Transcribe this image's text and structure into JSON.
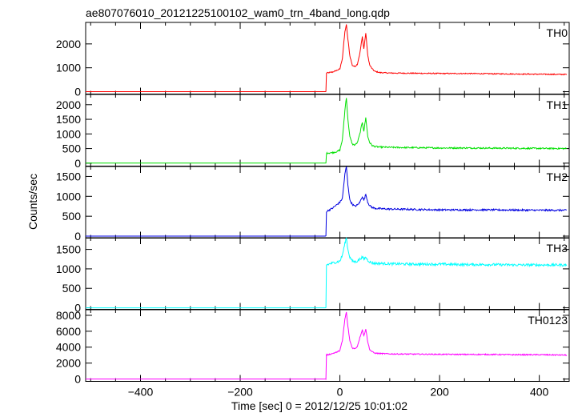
{
  "chart_data": {
    "type": "line",
    "title": "ae807076010_20121225100102_wam0_trn_4band_long.qdp",
    "xlabel": "Time [sec] 0 = 2012/12/25 10:01:02",
    "ylabel": "Counts/sec",
    "xlim": [
      -510,
      460
    ],
    "xticks": [
      -400,
      -200,
      0,
      200,
      400
    ],
    "grid": false,
    "panels": [
      {
        "name": "TH0",
        "color": "#ff0000",
        "ylim": [
          -100,
          2900
        ],
        "yticks": [
          0,
          1000,
          2000
        ],
        "pre": 0,
        "step_t": -28,
        "step": 800,
        "noise": 22,
        "x": [
          -510,
          -28,
          -27,
          -15,
          -5,
          0,
          5,
          10,
          13,
          16,
          20,
          25,
          30,
          35,
          40,
          45,
          48,
          52,
          56,
          60,
          65,
          70,
          80,
          100,
          150,
          200,
          250,
          300,
          350,
          400,
          455
        ],
        "y": [
          0,
          0,
          780,
          820,
          900,
          950,
          1400,
          2500,
          2800,
          2200,
          1500,
          1100,
          1050,
          1150,
          1600,
          2300,
          1800,
          2450,
          1500,
          1100,
          950,
          850,
          800,
          780,
          770,
          760,
          760,
          750,
          740,
          730,
          720
        ]
      },
      {
        "name": "TH1",
        "color": "#00e000",
        "ylim": [
          -100,
          2350
        ],
        "yticks": [
          0,
          500,
          1000,
          1500,
          2000
        ],
        "pre": 0,
        "step_t": -28,
        "step": 350,
        "noise": 25,
        "x": [
          -510,
          -28,
          -27,
          -15,
          -5,
          0,
          5,
          10,
          13,
          16,
          20,
          25,
          30,
          35,
          40,
          45,
          48,
          52,
          56,
          60,
          65,
          70,
          80,
          100,
          150,
          200,
          250,
          300,
          350,
          400,
          455
        ],
        "y": [
          0,
          0,
          340,
          360,
          400,
          450,
          800,
          1800,
          2250,
          1500,
          900,
          650,
          620,
          700,
          1000,
          1400,
          1100,
          1550,
          900,
          700,
          600,
          570,
          550,
          540,
          530,
          520,
          520,
          515,
          510,
          505,
          500
        ]
      },
      {
        "name": "TH2",
        "color": "#0000e0",
        "ylim": [
          -50,
          1750
        ],
        "yticks": [
          0,
          500,
          1000,
          1500
        ],
        "pre": 0,
        "step_t": -28,
        "step": 620,
        "noise": 22,
        "x": [
          -510,
          -28,
          -27,
          -15,
          -5,
          0,
          5,
          10,
          13,
          16,
          20,
          25,
          30,
          35,
          40,
          45,
          48,
          52,
          56,
          60,
          65,
          70,
          80,
          100,
          150,
          200,
          250,
          300,
          350,
          400,
          455
        ],
        "y": [
          0,
          0,
          620,
          700,
          800,
          850,
          950,
          1550,
          1750,
          1300,
          900,
          800,
          750,
          780,
          850,
          1000,
          900,
          1050,
          850,
          760,
          720,
          700,
          690,
          680,
          670,
          660,
          660,
          660,
          655,
          650,
          650
        ]
      },
      {
        "name": "TH3",
        "color": "#00ffff",
        "ylim": [
          -40,
          1800
        ],
        "yticks": [
          0,
          500,
          1000,
          1500
        ],
        "pre": 0,
        "step_t": -28,
        "step": 1100,
        "noise": 32,
        "x": [
          -510,
          -28,
          -27,
          -15,
          -5,
          0,
          5,
          10,
          13,
          16,
          20,
          25,
          30,
          35,
          40,
          45,
          48,
          52,
          56,
          60,
          65,
          70,
          80,
          100,
          150,
          200,
          250,
          300,
          350,
          400,
          455
        ],
        "y": [
          0,
          0,
          1100,
          1150,
          1180,
          1200,
          1350,
          1650,
          1800,
          1500,
          1300,
          1200,
          1180,
          1200,
          1250,
          1300,
          1250,
          1300,
          1220,
          1180,
          1150,
          1140,
          1140,
          1130,
          1120,
          1120,
          1110,
          1110,
          1100,
          1100,
          1100
        ]
      },
      {
        "name": "TH0123",
        "color": "#ff00ff",
        "ylim": [
          -300,
          8700
        ],
        "yticks": [
          0,
          2000,
          4000,
          6000,
          8000
        ],
        "pre": 0,
        "step_t": -28,
        "step": 3000,
        "noise": 70,
        "x": [
          -510,
          -28,
          -27,
          -15,
          -5,
          0,
          5,
          10,
          13,
          16,
          20,
          25,
          30,
          35,
          40,
          45,
          48,
          52,
          56,
          60,
          65,
          70,
          80,
          100,
          150,
          200,
          250,
          300,
          350,
          400,
          455
        ],
        "y": [
          0,
          0,
          3000,
          3200,
          3400,
          3600,
          4800,
          7500,
          8400,
          6600,
          4800,
          3900,
          3800,
          4100,
          5200,
          6200,
          5400,
          6300,
          4600,
          3700,
          3400,
          3250,
          3200,
          3150,
          3120,
          3100,
          3080,
          3080,
          3050,
          3050,
          3000
        ]
      }
    ]
  }
}
